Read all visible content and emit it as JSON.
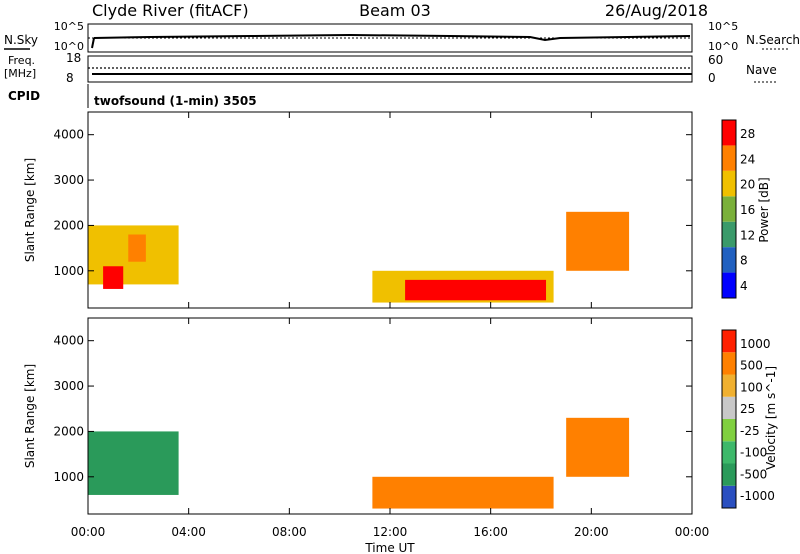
{
  "header": {
    "station": "Clyde River (fitACF)",
    "beam": "Beam 03",
    "date": "26/Aug/2018"
  },
  "info_panels": {
    "nsky_label": "N.Sky",
    "nsky_ticks": [
      "10^5",
      "10^0"
    ],
    "nsearch_label": "N.Search",
    "nsearch_ticks": [
      "10^5",
      "10^0"
    ],
    "freq_label": "Freq.",
    "freq_unit": "[MHz]",
    "freq_ticks": [
      "18",
      "8"
    ],
    "nave_label": "Nave",
    "nave_ticks": [
      "60",
      "0"
    ],
    "cpid_label": "CPID",
    "program": "twofsound (1-min) 3505"
  },
  "chart_data": [
    {
      "type": "heatmap",
      "name": "power",
      "ylabel": "Slant Range [km]",
      "xlabel": "Time UT",
      "ylim": [
        180,
        4500
      ],
      "yticks": [
        "4000",
        "3000",
        "2000",
        "1000"
      ],
      "xticks": [
        "00:00",
        "04:00",
        "08:00",
        "12:00",
        "16:00",
        "20:00",
        "00:00"
      ],
      "colorbar": {
        "label": "Power [dB]",
        "ticks": [
          "28",
          "24",
          "20",
          "16",
          "12",
          "8",
          "4"
        ],
        "colors": [
          "#0000ff",
          "#2060c0",
          "#3a9a6a",
          "#7ab03a",
          "#f0c000",
          "#ff8000",
          "#ff0000"
        ]
      },
      "regions": [
        {
          "t0": 0.0,
          "t1": 3.6,
          "r0": 700,
          "r1": 2000,
          "level": 4
        },
        {
          "t0": 0.6,
          "t1": 1.4,
          "r0": 600,
          "r1": 1100,
          "level": 6
        },
        {
          "t0": 1.6,
          "t1": 2.3,
          "r0": 1200,
          "r1": 1800,
          "level": 5
        },
        {
          "t0": 11.3,
          "t1": 18.5,
          "r0": 300,
          "r1": 1000,
          "level": 4
        },
        {
          "t0": 12.6,
          "t1": 18.2,
          "r0": 350,
          "r1": 800,
          "level": 6
        },
        {
          "t0": 19.0,
          "t1": 21.5,
          "r0": 1000,
          "r1": 2300,
          "level": 5
        }
      ]
    },
    {
      "type": "heatmap",
      "name": "velocity",
      "ylabel": "Slant Range [km]",
      "xlabel": "Time UT",
      "ylim": [
        180,
        4500
      ],
      "yticks": [
        "4000",
        "3000",
        "2000",
        "1000"
      ],
      "xticks": [
        "00:00",
        "04:00",
        "08:00",
        "12:00",
        "16:00",
        "20:00",
        "00:00"
      ],
      "colorbar": {
        "label": "Velocity [m s^-1]",
        "ticks": [
          "1000",
          "500",
          "100",
          "25",
          "-25",
          "-100",
          "-500",
          "-1000"
        ],
        "colors": [
          "#2a4fc0",
          "#2a9a5a",
          "#3db86a",
          "#80d040",
          "#c8c8c8",
          "#f0b030",
          "#ff8000",
          "#ff2000"
        ]
      },
      "regions": [
        {
          "t0": 0.0,
          "t1": 3.6,
          "r0": 600,
          "r1": 2000,
          "level": 1
        },
        {
          "t0": 11.3,
          "t1": 18.5,
          "r0": 300,
          "r1": 1000,
          "level": 6
        },
        {
          "t0": 19.0,
          "t1": 21.5,
          "r0": 1000,
          "r1": 2300,
          "level": 6
        }
      ]
    }
  ]
}
